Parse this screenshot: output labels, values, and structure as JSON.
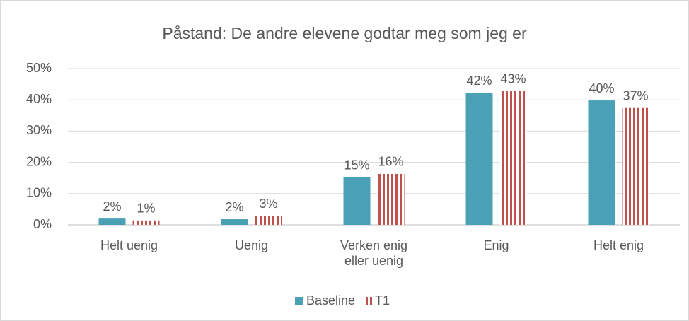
{
  "chart_data": {
    "type": "bar",
    "title": "Påstand: De andre elevene godtar meg som jeg er",
    "categories": [
      "Helt uenig",
      "Uenig",
      "Verken enig eller uenig",
      "Enig",
      "Helt enig"
    ],
    "series": [
      {
        "name": "Baseline",
        "color": "#4aa0b5",
        "pattern": "solid",
        "values": [
          2.0,
          1.8,
          15.2,
          42.3,
          39.8
        ],
        "value_labels": [
          "2%",
          "2%",
          "15%",
          "42%",
          "40%"
        ]
      },
      {
        "name": "T1",
        "color": "#c0504d",
        "pattern": "vertical-stripes",
        "values": [
          1.4,
          2.9,
          16.3,
          42.8,
          37.4
        ],
        "value_labels": [
          "1%",
          "3%",
          "16%",
          "43%",
          "37%"
        ]
      }
    ],
    "ylim": [
      0,
      50
    ],
    "yticks": [
      {
        "value": 0,
        "label": "0%"
      },
      {
        "value": 10,
        "label": "10%"
      },
      {
        "value": 20,
        "label": "20%"
      },
      {
        "value": 30,
        "label": "30%"
      },
      {
        "value": 40,
        "label": "40%"
      },
      {
        "value": 50,
        "label": "50%"
      }
    ],
    "grid": true,
    "legend": "bottom"
  }
}
